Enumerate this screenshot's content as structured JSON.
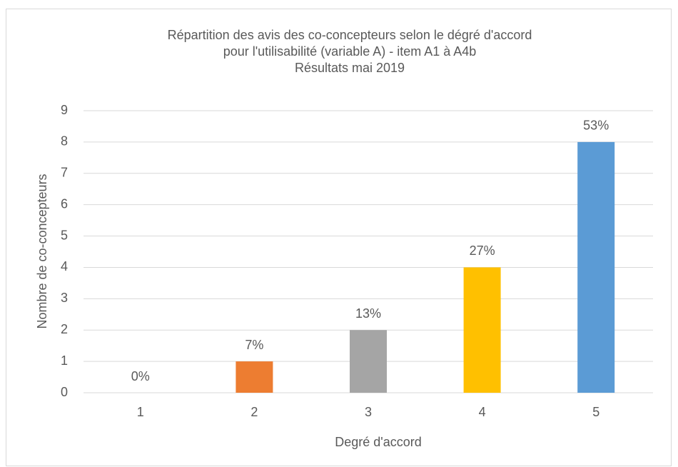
{
  "chart_data": {
    "type": "bar",
    "title": [
      "Répartition des avis des co-concepteurs selon le dégré d'accord",
      "pour l'utilisabilité (variable  A) - item A1 à A4b",
      "Résultats mai 2019"
    ],
    "x_label": "Degré  d'accord",
    "y_label": "Nombre de co-concepteurs",
    "categories": [
      "1",
      "2",
      "3",
      "4",
      "5"
    ],
    "values": [
      0,
      1,
      2,
      4,
      8
    ],
    "value_labels": [
      "0%",
      "7%",
      "13%",
      "27%",
      "53%"
    ],
    "colors": [
      "#4472c4",
      "#ed7d31",
      "#a5a5a5",
      "#ffc000",
      "#5b9bd5"
    ],
    "ylim": [
      0,
      9
    ],
    "yticks": [
      0,
      1,
      2,
      3,
      4,
      5,
      6,
      7,
      8,
      9
    ],
    "grid": true
  }
}
